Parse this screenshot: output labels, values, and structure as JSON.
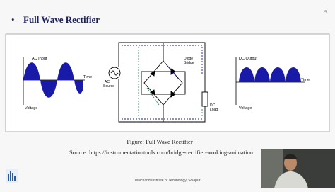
{
  "slide": {
    "bullet": "•",
    "title": "Full Wave Rectifier",
    "page_number": "5"
  },
  "figure": {
    "ac_input": {
      "label": "AC Input",
      "x_label": "Time",
      "y_label": "Voltage"
    },
    "circuit": {
      "source_label": [
        "AC",
        "Source"
      ],
      "bridge_label": [
        "Diode",
        "Bridge"
      ],
      "load_label": [
        "DC",
        "Load"
      ]
    },
    "dc_output": {
      "label": "DC Output",
      "x_label": "Time",
      "y_label": "Voltage"
    }
  },
  "caption": "Figure: Full Wave Rectifier",
  "source": "Source: https://instrumentationtools.com/bridge-rectifier-working-animation",
  "footer": "Walchand Institute of Technology, Solapur"
}
